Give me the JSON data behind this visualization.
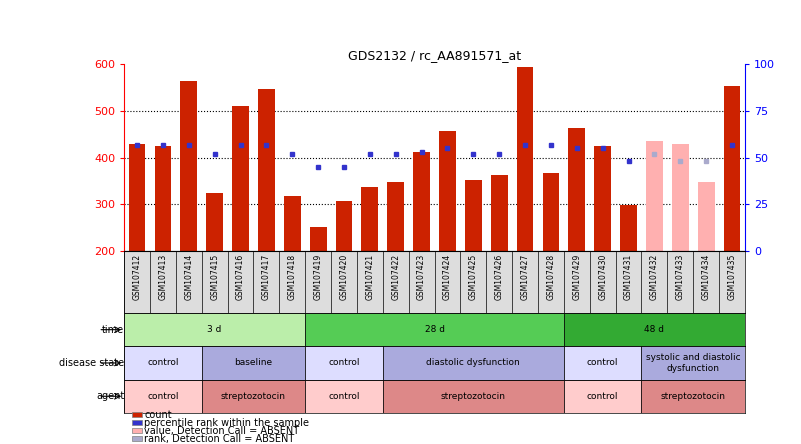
{
  "title": "GDS2132 / rc_AA891571_at",
  "samples": [
    "GSM107412",
    "GSM107413",
    "GSM107414",
    "GSM107415",
    "GSM107416",
    "GSM107417",
    "GSM107418",
    "GSM107419",
    "GSM107420",
    "GSM107421",
    "GSM107422",
    "GSM107423",
    "GSM107424",
    "GSM107425",
    "GSM107426",
    "GSM107427",
    "GSM107428",
    "GSM107429",
    "GSM107430",
    "GSM107431",
    "GSM107432",
    "GSM107433",
    "GSM107434",
    "GSM107435"
  ],
  "count_values": [
    430,
    425,
    565,
    325,
    510,
    548,
    317,
    252,
    308,
    337,
    347,
    412,
    457,
    353,
    363,
    595,
    368,
    463,
    425,
    299,
    435,
    430,
    347,
    553
  ],
  "percentile_values": [
    57,
    57,
    57,
    52,
    57,
    57,
    52,
    45,
    45,
    52,
    52,
    53,
    55,
    52,
    52,
    57,
    57,
    55,
    55,
    48,
    52,
    48,
    48,
    57
  ],
  "absent_mask": [
    0,
    0,
    0,
    0,
    0,
    0,
    0,
    0,
    0,
    0,
    0,
    0,
    0,
    0,
    0,
    0,
    0,
    0,
    0,
    0,
    1,
    1,
    1,
    0
  ],
  "ylim_left": [
    200,
    600
  ],
  "ylim_right": [
    0,
    100
  ],
  "yticks_left": [
    200,
    300,
    400,
    500,
    600
  ],
  "yticks_right": [
    0,
    25,
    50,
    75,
    100
  ],
  "bar_color_normal": "#CC2200",
  "bar_color_absent": "#FFB0B0",
  "dot_color_normal": "#3333CC",
  "dot_color_absent": "#AAAACC",
  "time_groups": [
    {
      "label": "3 d",
      "start": 0,
      "end": 7,
      "color": "#BBEEAA"
    },
    {
      "label": "28 d",
      "start": 7,
      "end": 17,
      "color": "#55CC55"
    },
    {
      "label": "48 d",
      "start": 17,
      "end": 24,
      "color": "#33AA33"
    }
  ],
  "disease_groups": [
    {
      "label": "control",
      "start": 0,
      "end": 3,
      "color": "#DDDDFF"
    },
    {
      "label": "baseline",
      "start": 3,
      "end": 7,
      "color": "#AAAADD"
    },
    {
      "label": "control",
      "start": 7,
      "end": 10,
      "color": "#DDDDFF"
    },
    {
      "label": "diastolic dysfunction",
      "start": 10,
      "end": 17,
      "color": "#AAAADD"
    },
    {
      "label": "control",
      "start": 17,
      "end": 20,
      "color": "#DDDDFF"
    },
    {
      "label": "systolic and diastolic\ndysfunction",
      "start": 20,
      "end": 24,
      "color": "#AAAADD"
    }
  ],
  "agent_groups": [
    {
      "label": "control",
      "start": 0,
      "end": 3,
      "color": "#FFCCCC"
    },
    {
      "label": "streptozotocin",
      "start": 3,
      "end": 7,
      "color": "#DD8888"
    },
    {
      "label": "control",
      "start": 7,
      "end": 10,
      "color": "#FFCCCC"
    },
    {
      "label": "streptozotocin",
      "start": 10,
      "end": 17,
      "color": "#DD8888"
    },
    {
      "label": "control",
      "start": 17,
      "end": 20,
      "color": "#FFCCCC"
    },
    {
      "label": "streptozotocin",
      "start": 20,
      "end": 24,
      "color": "#DD8888"
    }
  ],
  "legend_items": [
    {
      "label": "count",
      "color": "#CC2200"
    },
    {
      "label": "percentile rank within the sample",
      "color": "#3333CC"
    },
    {
      "label": "value, Detection Call = ABSENT",
      "color": "#FFB0B0"
    },
    {
      "label": "rank, Detection Call = ABSENT",
      "color": "#AAAACC"
    }
  ]
}
